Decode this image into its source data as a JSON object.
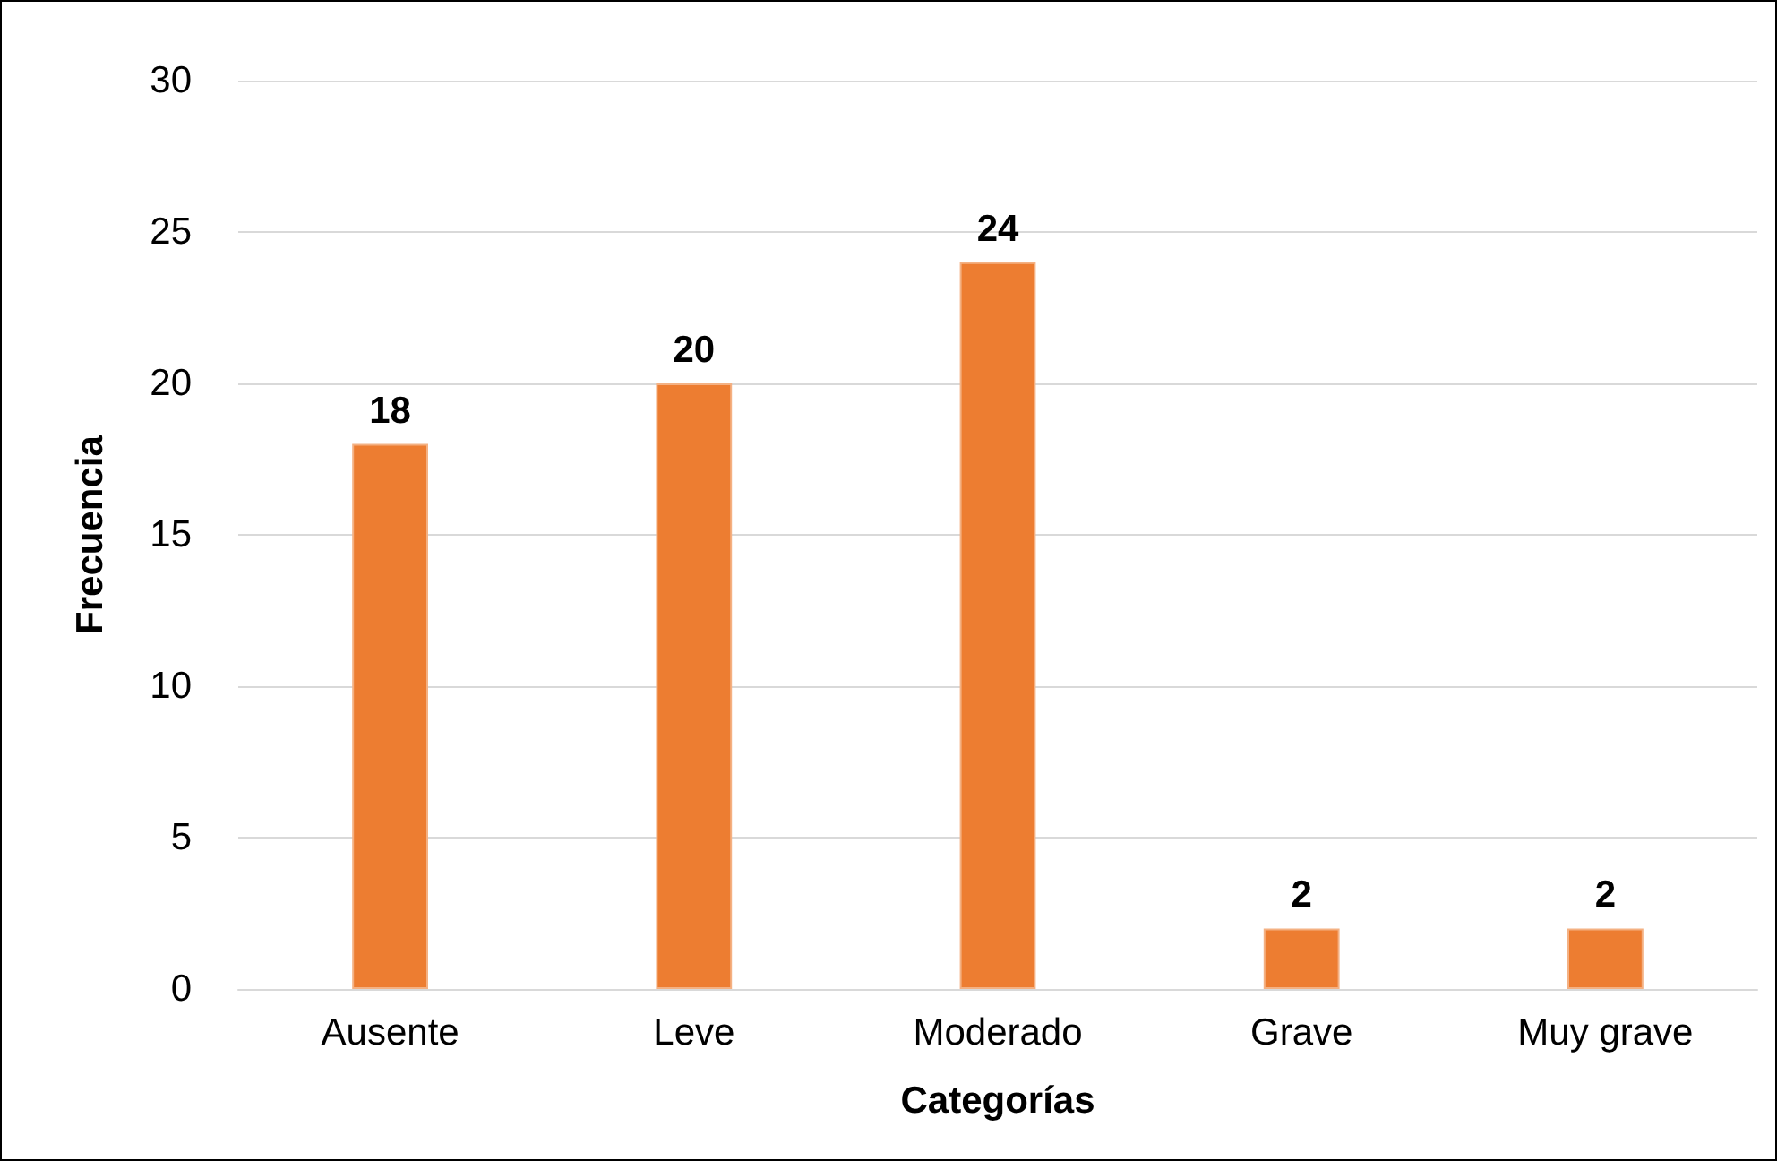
{
  "chart_data": {
    "type": "bar",
    "xlabel": "Categorías",
    "ylabel": "Frecuencia",
    "categories": [
      "Ausente",
      "Leve",
      "Moderado",
      "Grave",
      "Muy grave"
    ],
    "values": [
      18,
      20,
      24,
      2,
      2
    ],
    "color": "#ed7d31",
    "ylim": [
      0,
      30
    ],
    "yticks": [
      0,
      5,
      10,
      15,
      20,
      25,
      30
    ],
    "grid": "y",
    "data_labels": true
  }
}
